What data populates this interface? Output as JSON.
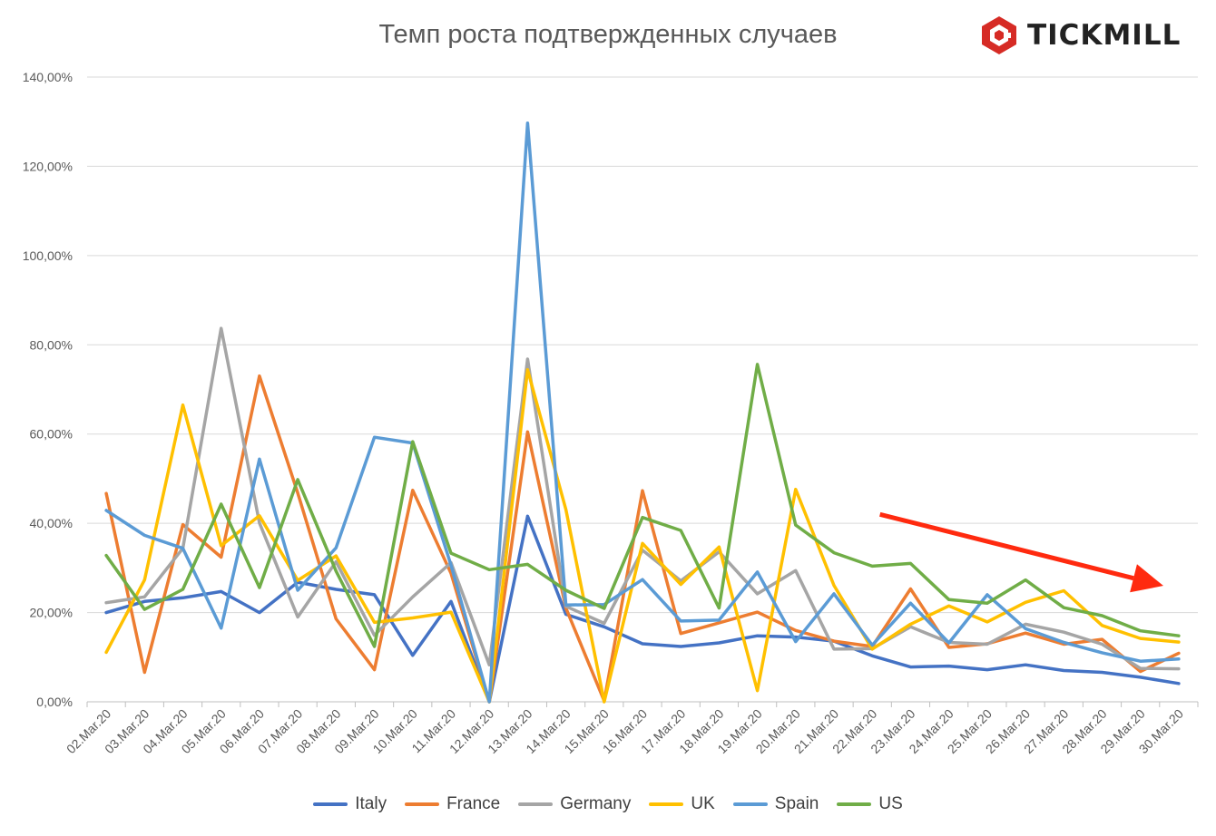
{
  "chart_data": {
    "type": "line",
    "title": "Темп роста подтвержденных случаев",
    "logo_text": "TICKMILL",
    "categories": [
      "02.Mar.20",
      "03.Mar.20",
      "04.Mar.20",
      "05.Mar.20",
      "06.Mar.20",
      "07.Mar.20",
      "08.Mar.20",
      "09.Mar.20",
      "10.Mar.20",
      "11.Mar.20",
      "12.Mar.20",
      "13.Mar.20",
      "14.Mar.20",
      "15.Mar.20",
      "16.Mar.20",
      "17.Mar.20",
      "18.Mar.20",
      "19.Mar.20",
      "20.Mar.20",
      "21.Mar.20",
      "22.Mar.20",
      "23.Mar.20",
      "24.Mar.20",
      "25.Mar.20",
      "26.Mar.20",
      "27.Mar.20",
      "28.Mar.20",
      "29.Mar.20",
      "30.Mar.20"
    ],
    "y_ticks": [
      "0,00%",
      "20,00%",
      "40,00%",
      "60,00%",
      "80,00%",
      "100,00%",
      "120,00%",
      "140,00%"
    ],
    "ylim": [
      0,
      140
    ],
    "grid": true,
    "legend_position": "bottom",
    "series": [
      {
        "name": "Italy",
        "color": "#4472c4",
        "values": [
          20,
          22.5,
          23.3,
          24.7,
          20,
          26.8,
          25.2,
          24,
          10.4,
          22.5,
          0,
          41.6,
          19.6,
          16.8,
          13,
          12.4,
          13.2,
          14.8,
          14.5,
          13.6,
          10.3,
          7.8,
          8,
          7.2,
          8.3,
          7,
          6.6,
          5.5,
          4.1
        ]
      },
      {
        "name": "France",
        "color": "#ed7d31",
        "values": [
          46.7,
          6.6,
          39.7,
          32.4,
          73,
          46.8,
          18.6,
          7.2,
          47.4,
          28.8,
          0,
          60.5,
          21,
          0.2,
          47.3,
          15.3,
          17.7,
          20.1,
          16,
          13.6,
          12.4,
          25.3,
          12.2,
          13,
          15.4,
          12.9,
          14,
          6.8,
          10.9
        ]
      },
      {
        "name": "Germany",
        "color": "#a5a5a5",
        "values": [
          22.2,
          23.5,
          34.4,
          83.7,
          40.1,
          19,
          31.4,
          14.9,
          23.5,
          31.2,
          8.3,
          76.8,
          21.4,
          17.6,
          34,
          27.1,
          33.6,
          24.2,
          29.4,
          11.8,
          11.9,
          16.8,
          13.3,
          12.9,
          17.4,
          15.6,
          12.9,
          7.5,
          7.4
        ]
      },
      {
        "name": "UK",
        "color": "#ffc000",
        "values": [
          11.1,
          27.3,
          66.5,
          35,
          41.7,
          27.2,
          32.7,
          17.8,
          18.8,
          20.1,
          0,
          74.4,
          43.1,
          0,
          35.5,
          26.3,
          34.7,
          2.5,
          47.6,
          26.1,
          11.8,
          17.4,
          21.5,
          17.9,
          22.3,
          24.9,
          17.1,
          14.2,
          13.4
        ]
      },
      {
        "name": "Spain",
        "color": "#5b9bd5",
        "values": [
          42.9,
          37.3,
          34.4,
          16.5,
          54.4,
          25,
          34.5,
          59.3,
          58,
          30.6,
          0,
          129.7,
          21.7,
          21.8,
          27.4,
          18.1,
          18.3,
          29.1,
          13.5,
          24.2,
          12.7,
          22.1,
          13.2,
          24,
          16.4,
          13.3,
          11,
          9.1,
          9.6
        ]
      },
      {
        "name": "US",
        "color": "#70ad47",
        "values": [
          32.8,
          20.7,
          25.2,
          44.3,
          25.6,
          49.8,
          29.3,
          12.4,
          58.3,
          33.3,
          29.6,
          30.8,
          25,
          20.9,
          41.3,
          38.4,
          21,
          75.6,
          39.6,
          33.4,
          30.4,
          31,
          22.9,
          22.1,
          27.3,
          21.1,
          19.3,
          15.9,
          14.8
        ]
      }
    ],
    "annotation": {
      "type": "arrow",
      "color": "#ff2a0f",
      "from": {
        "x": "22.Mar.20",
        "y": 42
      },
      "to": {
        "x": "30.Mar.20",
        "y": 26
      }
    }
  }
}
